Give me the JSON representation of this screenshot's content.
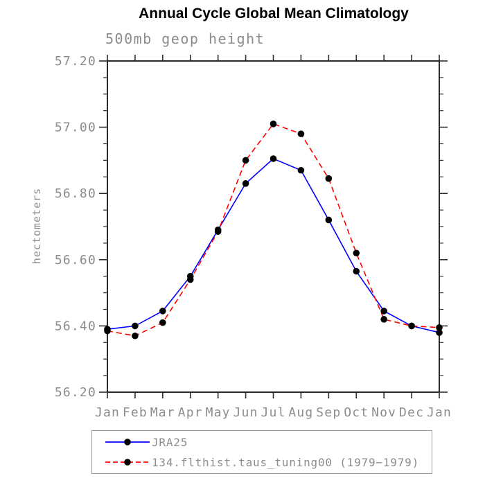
{
  "chart_data": {
    "type": "line",
    "title": "Annual Cycle Global Mean Climatology",
    "subtitle": "500mb geop height",
    "xlabel": "",
    "ylabel": "hectometers",
    "x_tick_labels": [
      "Jan",
      "Feb",
      "Mar",
      "Apr",
      "May",
      "Jun",
      "Jul",
      "Aug",
      "Sep",
      "Oct",
      "Nov",
      "Dec",
      "Jan"
    ],
    "ylim": [
      56.2,
      57.2
    ],
    "y_major_tick_step": 0.2,
    "y_minor_tick_step": 0.05,
    "y_tick_format_decimals": 2,
    "grid": false,
    "frame": "box-with-outward-ticks",
    "legend_position": "below-plot-left",
    "series": [
      {
        "name": "JRA25",
        "color": "#0000ff",
        "line_style": "solid",
        "marker": "filled-circle",
        "marker_color": "#000000",
        "values": [
          56.39,
          56.4,
          56.445,
          56.55,
          56.69,
          56.83,
          56.905,
          56.87,
          56.72,
          56.565,
          56.445,
          56.4,
          56.38
        ]
      },
      {
        "name": "134.flthist.taus_tuning00 (1979−1979)",
        "color": "#ff0000",
        "line_style": "dashed",
        "marker": "filled-circle",
        "marker_color": "#000000",
        "values": [
          56.385,
          56.37,
          56.41,
          56.54,
          56.685,
          56.9,
          57.01,
          56.98,
          56.845,
          56.62,
          56.42,
          56.4,
          56.395
        ]
      }
    ]
  },
  "colors": {
    "axis": "#2b2b2b",
    "label_gray": "#8c8c8c",
    "title_black": "#000000",
    "legend_border": "#9a9a9a",
    "series_blue": "#0000ff",
    "series_red": "#ff0000",
    "marker_black": "#000000",
    "page_bg": "#ffffff"
  }
}
